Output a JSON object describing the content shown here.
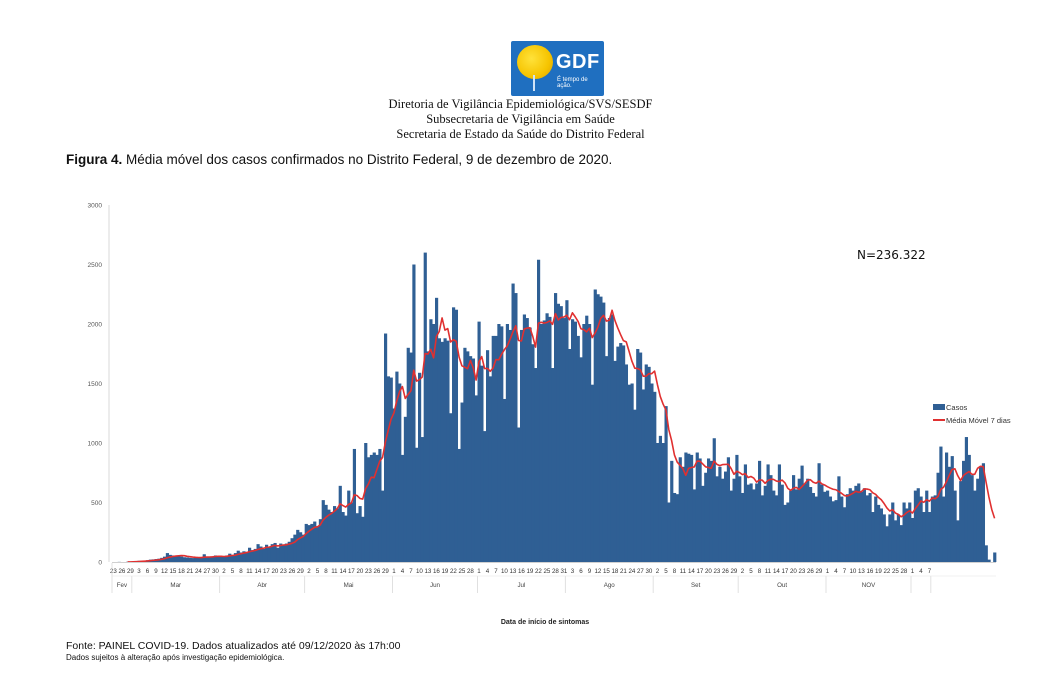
{
  "header": {
    "logo_brand": "GDF",
    "logo_slogan": "É tempo de ação.",
    "line1": "Diretoria de Vigilância Epidemiológica/SVS/SESDF",
    "line2": "Subsecretaria de Vigilância em Saúde",
    "line3": "Secretaria de Estado da Saúde do Distrito Federal"
  },
  "figure": {
    "label": "Figura 4.",
    "caption": "Média móvel dos casos confirmados no Distrito Federal, 9 de dezembro de 2020."
  },
  "footer": {
    "source": "Fonte: PAINEL COVID-19. Dados atualizados até 09/12/2020 às 17h:00",
    "note": "Dados sujeitos à alteração após investigação epidemiológica."
  },
  "chart_data": {
    "type": "bar",
    "title": "",
    "annotation": "N=236.322",
    "xlabel": "Data de início de sintomas",
    "ylabel": "",
    "ylim": [
      0,
      3000
    ],
    "yticks": [
      0,
      500,
      1000,
      1500,
      2000,
      2500,
      3000
    ],
    "grid": false,
    "legend_position": "right",
    "start_date": "2020-02-23",
    "end_date": "2020-12-07",
    "x_tick_labels": [
      "23",
      "26",
      "29",
      "3",
      "6",
      "9",
      "12",
      "15",
      "18",
      "21",
      "24",
      "27",
      "30",
      "2",
      "5",
      "8",
      "11",
      "14",
      "17",
      "20",
      "23",
      "26",
      "29",
      "2",
      "5",
      "8",
      "11",
      "14",
      "17",
      "20",
      "23",
      "26",
      "29",
      "1",
      "4",
      "7",
      "10",
      "13",
      "16",
      "19",
      "22",
      "25",
      "28",
      "1",
      "4",
      "7",
      "10",
      "13",
      "16",
      "19",
      "22",
      "25",
      "28",
      "31",
      "3",
      "6",
      "9",
      "12",
      "15",
      "18",
      "21",
      "24",
      "27",
      "30",
      "2",
      "5",
      "8",
      "11",
      "14",
      "17",
      "20",
      "23",
      "26",
      "29",
      "2",
      "5",
      "8",
      "11",
      "14",
      "17",
      "20",
      "23",
      "26",
      "29",
      "1",
      "4",
      "7",
      "10",
      "13",
      "16",
      "19",
      "22",
      "25",
      "28",
      "1",
      "4",
      "7"
    ],
    "months": [
      {
        "label": "Fev",
        "days": 7
      },
      {
        "label": "Mar",
        "days": 31
      },
      {
        "label": "Abr",
        "days": 30
      },
      {
        "label": "Mai",
        "days": 31
      },
      {
        "label": "Jun",
        "days": 30
      },
      {
        "label": "Jul",
        "days": 31
      },
      {
        "label": "Ago",
        "days": 31
      },
      {
        "label": "Set",
        "days": 30
      },
      {
        "label": "Out",
        "days": 31
      },
      {
        "label": "NOV",
        "days": 30
      },
      {
        "label": "",
        "days": 7
      }
    ],
    "series": [
      {
        "name": "Casos",
        "kind": "bar",
        "color": "#2f5f94",
        "values": [
          0,
          0,
          1,
          0,
          0,
          2,
          4,
          5,
          8,
          10,
          9,
          12,
          15,
          20,
          22,
          25,
          28,
          35,
          45,
          75,
          60,
          55,
          50,
          48,
          45,
          40,
          38,
          35,
          33,
          36,
          38,
          40,
          65,
          45,
          38,
          42,
          55,
          48,
          45,
          50,
          55,
          70,
          60,
          75,
          95,
          80,
          90,
          85,
          120,
          100,
          110,
          150,
          130,
          110,
          145,
          130,
          150,
          160,
          120,
          155,
          140,
          155,
          170,
          200,
          230,
          270,
          250,
          230,
          320,
          310,
          320,
          340,
          300,
          360,
          520,
          480,
          440,
          420,
          470,
          450,
          640,
          420,
          390,
          600,
          500,
          950,
          410,
          470,
          380,
          1000,
          880,
          900,
          920,
          900,
          950,
          600,
          1920,
          1560,
          1550,
          1290,
          1600,
          1500,
          900,
          1220,
          1800,
          1760,
          2500,
          960,
          1590,
          1050,
          2600,
          1770,
          2040,
          2000,
          2220,
          1880,
          1850,
          1880,
          1860,
          1250,
          2140,
          2120,
          950,
          1340,
          1800,
          1770,
          1730,
          1710,
          1400,
          2020,
          1650,
          1100,
          1780,
          1560,
          1900,
          1900,
          2000,
          1980,
          1370,
          2000,
          1950,
          2340,
          2260,
          1130,
          1950,
          2080,
          2050,
          1970,
          1830,
          1630,
          2540,
          2000,
          2030,
          2090,
          2060,
          1630,
          2260,
          2170,
          2150,
          2050,
          2200,
          1790,
          2040,
          2020,
          1900,
          1720,
          2000,
          2070,
          2000,
          1490,
          2290,
          2250,
          2230,
          2180,
          1730,
          2050,
          2080,
          1690,
          1810,
          1840,
          1820,
          1660,
          1490,
          1500,
          1280,
          1790,
          1760,
          1450,
          1660,
          1640,
          1500,
          1430,
          1000,
          1060,
          1000,
          1310,
          500,
          850,
          580,
          570,
          880,
          800,
          920,
          910,
          900,
          610,
          920,
          870,
          640,
          750,
          870,
          850,
          1040,
          720,
          800,
          700,
          760,
          880,
          600,
          700,
          900,
          720,
          580,
          820,
          650,
          660,
          610,
          660,
          850,
          560,
          640,
          820,
          730,
          600,
          560,
          820,
          650,
          480,
          500,
          600,
          730,
          610,
          700,
          810,
          660,
          700,
          630,
          580,
          550,
          830,
          650,
          590,
          600,
          550,
          510,
          520,
          720,
          550,
          460,
          570,
          620,
          600,
          640,
          660,
          590,
          620,
          560,
          580,
          420,
          550,
          480,
          450,
          400,
          300,
          400,
          500,
          350,
          400,
          310,
          500,
          450,
          500,
          370,
          600,
          620,
          550,
          420,
          600,
          420,
          550,
          560,
          750,
          970,
          550,
          920,
          800,
          890,
          600,
          350,
          680,
          850,
          1050,
          900,
          730,
          600,
          700,
          800,
          830,
          140,
          20,
          0,
          80
        ]
      },
      {
        "name": "Média Móvel 7 dias",
        "kind": "line",
        "color": "#e03030",
        "values": []
      }
    ]
  }
}
